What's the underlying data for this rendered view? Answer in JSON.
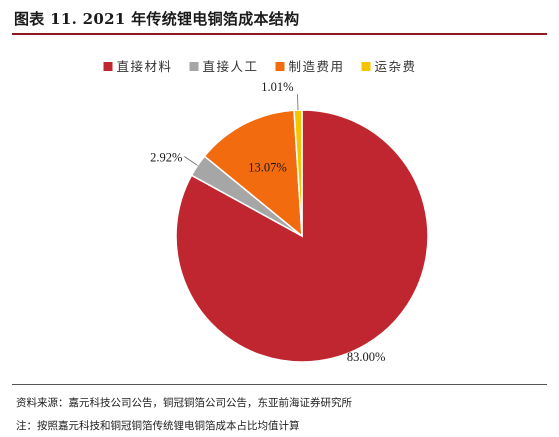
{
  "figure": {
    "title": "图表 11. 2021 年传统锂电铜箔成本结构",
    "source": "资料来源：嘉元科技公司公告，铜冠铜箔公司公告，东亚前海证券研究所",
    "note": "注：按照嘉元科技和铜冠铜箔传统锂电铜箔成本占比均值计算"
  },
  "colors": {
    "rule": "#8c1b1f",
    "slices": [
      "#c0262f",
      "#a6a6a6",
      "#f26b0f",
      "#f5c400"
    ]
  },
  "chart_data": {
    "type": "pie",
    "title": "图表 11. 2021 年传统锂电铜箔成本结构",
    "legend_position": "top",
    "categories": [
      "直接材料",
      "直接人工",
      "制造费用",
      "运杂费"
    ],
    "values": [
      83.0,
      2.92,
      13.07,
      1.01
    ],
    "data_labels": [
      "83.00%",
      "2.92%",
      "13.07%",
      "1.01%"
    ]
  }
}
